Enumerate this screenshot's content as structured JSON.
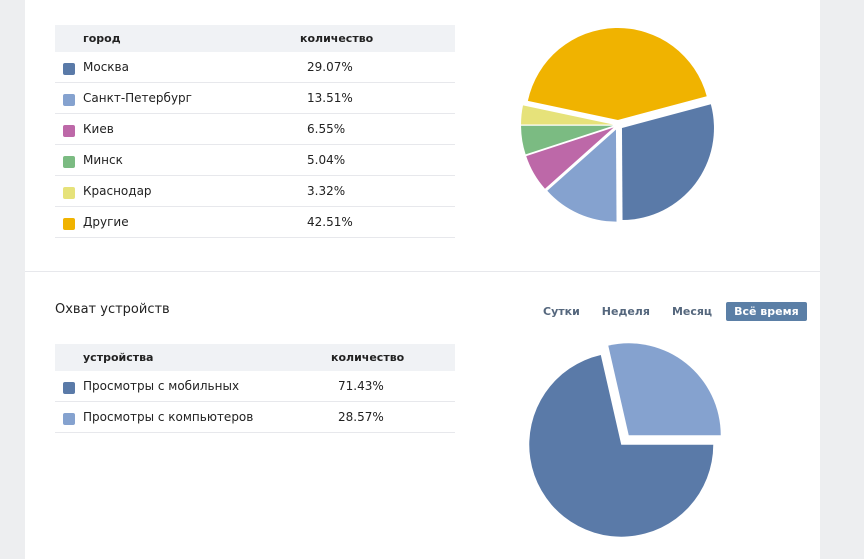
{
  "cities": {
    "header": {
      "name": "город",
      "value": "количество"
    },
    "rows": [
      {
        "name": "Москва",
        "value": "29.07%",
        "color": "#5a7aa8"
      },
      {
        "name": "Санкт-Петербург",
        "value": "13.51%",
        "color": "#85a2cf"
      },
      {
        "name": "Киев",
        "value": "6.55%",
        "color": "#bd68a8"
      },
      {
        "name": "Минск",
        "value": "5.04%",
        "color": "#7bbb82"
      },
      {
        "name": "Краснодар",
        "value": "3.32%",
        "color": "#e6e27a"
      },
      {
        "name": "Другие",
        "value": "42.51%",
        "color": "#f0b300"
      }
    ]
  },
  "devices": {
    "title": "Охват устройств",
    "tabs": [
      {
        "label": "Сутки",
        "active": false
      },
      {
        "label": "Неделя",
        "active": false
      },
      {
        "label": "Месяц",
        "active": false
      },
      {
        "label": "Всё время",
        "active": true
      }
    ],
    "header": {
      "name": "устройства",
      "value": "количество"
    },
    "rows": [
      {
        "name": "Просмотры с мобильных",
        "value": "71.43%",
        "color": "#5a7aa8"
      },
      {
        "name": "Просмотры с компьютеров",
        "value": "28.57%",
        "color": "#85a2cf"
      }
    ]
  },
  "chart_data": [
    {
      "type": "pie",
      "title": "",
      "categories": [
        "Москва",
        "Санкт-Петербург",
        "Киев",
        "Минск",
        "Краснодар",
        "Другие"
      ],
      "values": [
        29.07,
        13.51,
        6.55,
        5.04,
        3.32,
        42.51
      ],
      "colors": [
        "#5a7aa8",
        "#85a2cf",
        "#bd68a8",
        "#7bbb82",
        "#e6e27a",
        "#f0b300"
      ]
    },
    {
      "type": "pie",
      "title": "",
      "categories": [
        "Просмотры с мобильных",
        "Просмотры с компьютеров"
      ],
      "values": [
        71.43,
        28.57
      ],
      "colors": [
        "#5a7aa8",
        "#85a2cf"
      ]
    }
  ]
}
